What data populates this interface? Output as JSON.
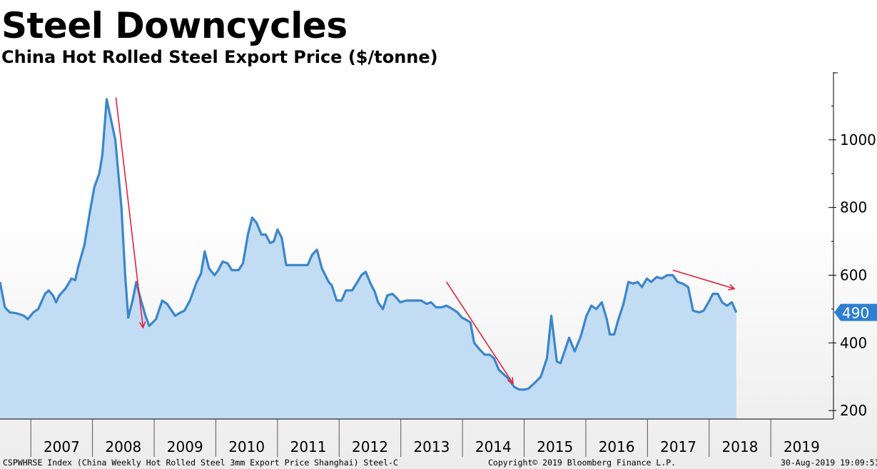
{
  "header": {
    "title": "Steel Downcycles",
    "subtitle": "China Hot Rolled Steel Export Price ($/tonne)"
  },
  "footer": {
    "source": "CSPWHRSE Index (China Weekly Hot Rolled Steel 3mm Export Price Shanghai) Steel-C",
    "copyright": "Copyright© 2019 Bloomberg Finance L.P.",
    "timestamp": "30-Aug-2019 19:09:51"
  },
  "colors": {
    "line": "#3a86cc",
    "area": "#c2dcf4",
    "arrow": "#e8203a",
    "badge": "#2e7fd1"
  },
  "chart_data": {
    "type": "area",
    "title": "China Hot Rolled Steel Export Price ($/tonne)",
    "x_axis": {
      "labels": [
        "2007",
        "2008",
        "2009",
        "2010",
        "2011",
        "2012",
        "2013",
        "2014",
        "2015",
        "2016",
        "2017",
        "2018",
        "2019"
      ],
      "xlim": [
        2006.5,
        2019.75
      ]
    },
    "y_axis": {
      "position": "right",
      "ticks": [
        200,
        400,
        600,
        800,
        1000
      ],
      "ylim": [
        175,
        1200
      ]
    },
    "last_value_label": "490",
    "series": [
      {
        "name": "CSPWHRSE Index",
        "points": [
          [
            2006.5,
            580
          ],
          [
            2006.58,
            505
          ],
          [
            2006.66,
            490
          ],
          [
            2006.75,
            488
          ],
          [
            2006.83,
            484
          ],
          [
            2006.89,
            480
          ],
          [
            2006.95,
            470
          ],
          [
            2007.04,
            490
          ],
          [
            2007.12,
            500
          ],
          [
            2007.23,
            545
          ],
          [
            2007.29,
            555
          ],
          [
            2007.36,
            540
          ],
          [
            2007.41,
            520
          ],
          [
            2007.46,
            540
          ],
          [
            2007.56,
            560
          ],
          [
            2007.66,
            590
          ],
          [
            2007.72,
            585
          ],
          [
            2007.77,
            625
          ],
          [
            2007.87,
            690
          ],
          [
            2007.96,
            790
          ],
          [
            2008.03,
            860
          ],
          [
            2008.11,
            900
          ],
          [
            2008.16,
            955
          ],
          [
            2008.23,
            1120
          ],
          [
            2008.37,
            1000
          ],
          [
            2008.47,
            800
          ],
          [
            2008.53,
            600
          ],
          [
            2008.58,
            475
          ],
          [
            2008.65,
            525
          ],
          [
            2008.71,
            580
          ],
          [
            2008.78,
            530
          ],
          [
            2008.86,
            480
          ],
          [
            2008.92,
            450
          ],
          [
            2009.03,
            470
          ],
          [
            2009.13,
            525
          ],
          [
            2009.21,
            515
          ],
          [
            2009.34,
            480
          ],
          [
            2009.43,
            490
          ],
          [
            2009.49,
            495
          ],
          [
            2009.58,
            525
          ],
          [
            2009.69,
            580
          ],
          [
            2009.76,
            605
          ],
          [
            2009.82,
            670
          ],
          [
            2009.89,
            620
          ],
          [
            2009.98,
            600
          ],
          [
            2010.04,
            615
          ],
          [
            2010.11,
            640
          ],
          [
            2010.19,
            635
          ],
          [
            2010.26,
            615
          ],
          [
            2010.37,
            615
          ],
          [
            2010.44,
            635
          ],
          [
            2010.52,
            720
          ],
          [
            2010.59,
            770
          ],
          [
            2010.66,
            755
          ],
          [
            2010.74,
            720
          ],
          [
            2010.81,
            720
          ],
          [
            2010.88,
            695
          ],
          [
            2010.94,
            700
          ],
          [
            2011.0,
            735
          ],
          [
            2011.07,
            710
          ],
          [
            2011.14,
            630
          ],
          [
            2011.26,
            630
          ],
          [
            2011.41,
            630
          ],
          [
            2011.49,
            630
          ],
          [
            2011.56,
            660
          ],
          [
            2011.64,
            675
          ],
          [
            2011.72,
            620
          ],
          [
            2011.83,
            580
          ],
          [
            2011.88,
            570
          ],
          [
            2011.96,
            525
          ],
          [
            2012.04,
            525
          ],
          [
            2012.11,
            555
          ],
          [
            2012.21,
            555
          ],
          [
            2012.28,
            575
          ],
          [
            2012.36,
            600
          ],
          [
            2012.43,
            610
          ],
          [
            2012.51,
            575
          ],
          [
            2012.58,
            550
          ],
          [
            2012.63,
            520
          ],
          [
            2012.71,
            500
          ],
          [
            2012.78,
            540
          ],
          [
            2012.86,
            545
          ],
          [
            2012.92,
            535
          ],
          [
            2012.99,
            520
          ],
          [
            2013.09,
            525
          ],
          [
            2013.24,
            525
          ],
          [
            2013.33,
            525
          ],
          [
            2013.42,
            515
          ],
          [
            2013.49,
            520
          ],
          [
            2013.57,
            505
          ],
          [
            2013.66,
            505
          ],
          [
            2013.74,
            510
          ],
          [
            2013.84,
            500
          ],
          [
            2013.92,
            490
          ],
          [
            2013.99,
            475
          ],
          [
            2014.09,
            465
          ],
          [
            2014.13,
            460
          ],
          [
            2014.19,
            400
          ],
          [
            2014.28,
            380
          ],
          [
            2014.36,
            365
          ],
          [
            2014.44,
            365
          ],
          [
            2014.51,
            355
          ],
          [
            2014.59,
            320
          ],
          [
            2014.74,
            295
          ],
          [
            2014.84,
            270
          ],
          [
            2014.92,
            262
          ],
          [
            2015.01,
            262
          ],
          [
            2015.07,
            265
          ],
          [
            2015.16,
            280
          ],
          [
            2015.27,
            300
          ],
          [
            2015.37,
            355
          ],
          [
            2015.44,
            480
          ],
          [
            2015.53,
            345
          ],
          [
            2015.59,
            340
          ],
          [
            2015.73,
            415
          ],
          [
            2015.82,
            375
          ],
          [
            2015.92,
            420
          ],
          [
            2016.01,
            480
          ],
          [
            2016.09,
            510
          ],
          [
            2016.17,
            500
          ],
          [
            2016.26,
            520
          ],
          [
            2016.34,
            470
          ],
          [
            2016.39,
            425
          ],
          [
            2016.46,
            425
          ],
          [
            2016.53,
            470
          ],
          [
            2016.61,
            515
          ],
          [
            2016.69,
            580
          ],
          [
            2016.77,
            575
          ],
          [
            2016.84,
            580
          ],
          [
            2016.91,
            565
          ],
          [
            2016.99,
            590
          ],
          [
            2017.06,
            580
          ],
          [
            2017.15,
            595
          ],
          [
            2017.23,
            590
          ],
          [
            2017.32,
            600
          ],
          [
            2017.41,
            600
          ],
          [
            2017.49,
            580
          ],
          [
            2017.57,
            575
          ],
          [
            2017.66,
            565
          ],
          [
            2017.74,
            495
          ],
          [
            2017.84,
            490
          ],
          [
            2017.91,
            495
          ],
          [
            2017.99,
            520
          ],
          [
            2018.06,
            545
          ],
          [
            2018.14,
            545
          ],
          [
            2018.21,
            520
          ],
          [
            2018.29,
            510
          ],
          [
            2018.37,
            520
          ],
          [
            2018.44,
            490
          ]
        ]
      }
    ],
    "annotations": [
      {
        "type": "arrow",
        "from": [
          2008.38,
          1125
        ],
        "to": [
          2008.82,
          445
        ]
      },
      {
        "type": "arrow",
        "from": [
          2013.74,
          580
        ],
        "to": [
          2014.82,
          280
        ]
      },
      {
        "type": "arrow",
        "from": [
          2017.41,
          615
        ],
        "to": [
          2018.41,
          560
        ]
      }
    ]
  }
}
